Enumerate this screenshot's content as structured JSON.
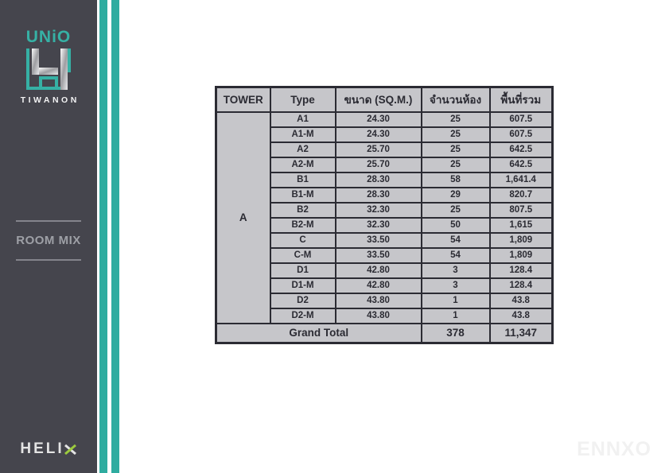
{
  "brand": {
    "name": "UNiO",
    "location": "TIWANON"
  },
  "sidebar": {
    "section_title": "ROOM MIX",
    "partner_logo": "HELIX"
  },
  "footer": {
    "watermark": "ENNXO"
  },
  "colors": {
    "accent_teal": "#2faca0",
    "sidebar_bg": "#45454d",
    "table_bg": "#c6c6ca",
    "table_border": "#2b2b33",
    "helix_green": "#9cca3e"
  },
  "table": {
    "headers": [
      "TOWER",
      "Type",
      "ขนาด (SQ.M.)",
      "จำนวนห้อง",
      "พื้นที่รวม"
    ],
    "tower": "A",
    "rows": [
      [
        "A1",
        "24.30",
        "25",
        "607.5"
      ],
      [
        "A1-M",
        "24.30",
        "25",
        "607.5"
      ],
      [
        "A2",
        "25.70",
        "25",
        "642.5"
      ],
      [
        "A2-M",
        "25.70",
        "25",
        "642.5"
      ],
      [
        "B1",
        "28.30",
        "58",
        "1,641.4"
      ],
      [
        "B1-M",
        "28.30",
        "29",
        "820.7"
      ],
      [
        "B2",
        "32.30",
        "25",
        "807.5"
      ],
      [
        "B2-M",
        "32.30",
        "50",
        "1,615"
      ],
      [
        "C",
        "33.50",
        "54",
        "1,809"
      ],
      [
        "C-M",
        "33.50",
        "54",
        "1,809"
      ],
      [
        "D1",
        "42.80",
        "3",
        "128.4"
      ],
      [
        "D1-M",
        "42.80",
        "3",
        "128.4"
      ],
      [
        "D2",
        "43.80",
        "1",
        "43.8"
      ],
      [
        "D2-M",
        "43.80",
        "1",
        "43.8"
      ]
    ],
    "grand_total": {
      "label": "Grand Total",
      "rooms": "378",
      "area": "11,347"
    }
  }
}
